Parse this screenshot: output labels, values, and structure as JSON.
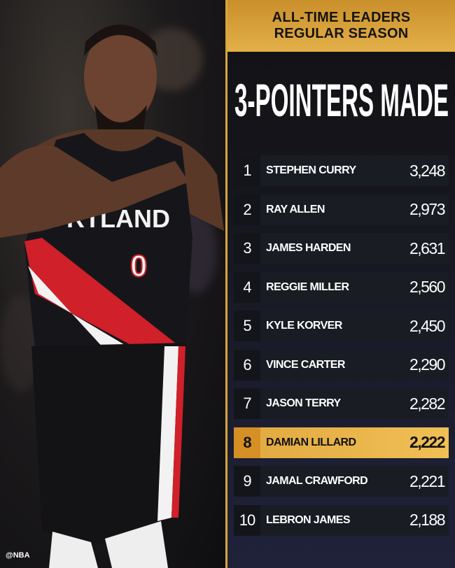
{
  "header": {
    "line1": "ALL-TIME LEADERS",
    "line2": "REGULAR SEASON"
  },
  "title": "3-POINTERS MADE",
  "colors": {
    "gold": "#e3b04a",
    "highlight": "#f0c055",
    "row_bg": "#1a1c24"
  },
  "photo": {
    "jersey_text": "RTLAND",
    "jersey_number": "0"
  },
  "leaders": [
    {
      "rank": "1",
      "name": "STEPHEN CURRY",
      "value": "3,248"
    },
    {
      "rank": "2",
      "name": "RAY ALLEN",
      "value": "2,973"
    },
    {
      "rank": "3",
      "name": "JAMES HARDEN",
      "value": "2,631"
    },
    {
      "rank": "4",
      "name": "REGGIE MILLER",
      "value": "2,560"
    },
    {
      "rank": "5",
      "name": "KYLE KORVER",
      "value": "2,450"
    },
    {
      "rank": "6",
      "name": "VINCE CARTER",
      "value": "2,290"
    },
    {
      "rank": "7",
      "name": "JASON TERRY",
      "value": "2,282"
    },
    {
      "rank": "8",
      "name": "DAMIAN LILLARD",
      "value": "2,222",
      "highlighted": true
    },
    {
      "rank": "9",
      "name": "JAMAL CRAWFORD",
      "value": "2,221"
    },
    {
      "rank": "10",
      "name": "LEBRON JAMES",
      "value": "2,188"
    }
  ],
  "watermark": "@NBA"
}
